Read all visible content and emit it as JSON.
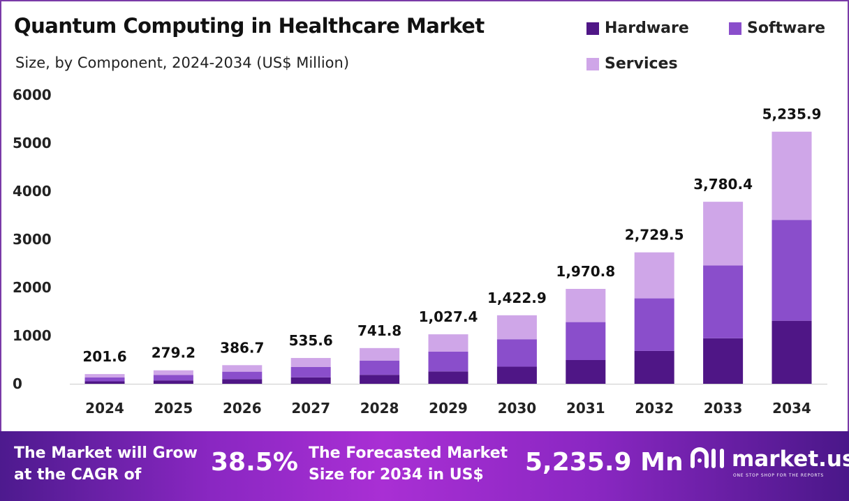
{
  "chart_data": {
    "type": "bar",
    "stacked": true,
    "title": "Quantum Computing in Healthcare Market",
    "subtitle": "Size, by Component, 2024-2034 (US$ Million)",
    "xlabel": "",
    "ylabel": "",
    "ylim": [
      0,
      6000
    ],
    "yticks": [
      "0",
      "1000",
      "2000",
      "3000",
      "4000",
      "5000",
      "6000"
    ],
    "grid": false,
    "legend_position": "top-right",
    "categories": [
      "2024",
      "2025",
      "2026",
      "2027",
      "2028",
      "2029",
      "2030",
      "2031",
      "2032",
      "2033",
      "2034"
    ],
    "series": [
      {
        "name": "Hardware",
        "color": "#4f1686",
        "values": [
          50.4,
          69.8,
          96.7,
          133.9,
          185.5,
          256.9,
          355.7,
          492.7,
          682.4,
          945.1,
          1309.0
        ]
      },
      {
        "name": "Software",
        "color": "#8a4ecb",
        "values": [
          80.6,
          111.7,
          154.7,
          214.2,
          296.7,
          411.0,
          569.2,
          788.3,
          1091.8,
          1512.2,
          2094.4
        ]
      },
      {
        "name": "Services",
        "color": "#cfa6e8",
        "values": [
          70.6,
          97.7,
          135.3,
          187.5,
          259.6,
          359.5,
          498.0,
          689.8,
          955.3,
          1323.1,
          1832.5
        ]
      }
    ],
    "totals": [
      201.6,
      279.2,
      386.7,
      535.6,
      741.8,
      1027.4,
      1422.9,
      1970.8,
      2729.5,
      3780.4,
      5235.9
    ],
    "total_labels": [
      "201.6",
      "279.2",
      "386.7",
      "535.6",
      "741.8",
      "1,027.4",
      "1,422.9",
      "1,970.8",
      "2,729.5",
      "3,780.4",
      "5,235.9"
    ]
  },
  "banner": {
    "cagr_text_line1": "The Market will Grow",
    "cagr_text_line2": "at the CAGR of",
    "cagr_value": "38.5%",
    "forecast_text_line1": "The Forecasted Market",
    "forecast_text_line2": "Size for 2034 in US$",
    "forecast_value": "5,235.9 Mn",
    "logo_name": "market.us",
    "logo_tagline": "ONE STOP SHOP FOR THE REPORTS"
  }
}
